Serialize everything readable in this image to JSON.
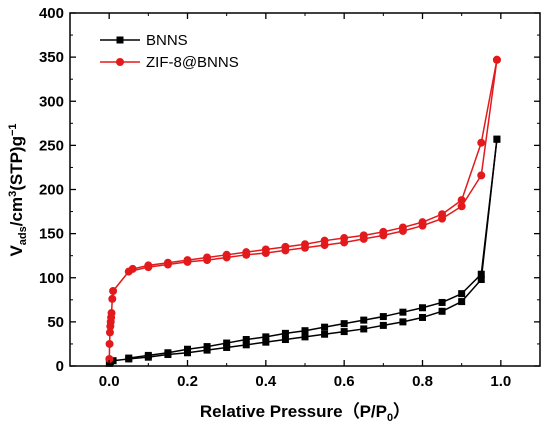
{
  "chart_data": {
    "type": "line",
    "title": "",
    "xlabel": "Relative Pressure (P/P₀)",
    "xlabel_parts": {
      "main": "Relative Pressure（P/P",
      "sub": "0",
      "end": "）"
    },
    "ylabel_parts": {
      "v": "V",
      "ads": "ads",
      "mid": "/cm",
      "cube": "3",
      "stp": "(STP)g",
      "neg": "−1"
    },
    "xlim": [
      -0.1,
      1.1
    ],
    "ylim": [
      0,
      400
    ],
    "xticks": [
      0.0,
      0.2,
      0.4,
      0.6,
      0.8,
      1.0
    ],
    "xtick_labels": [
      "0.0",
      "0.2",
      "0.4",
      "0.6",
      "0.8",
      "1.0"
    ],
    "yticks": [
      0,
      50,
      100,
      150,
      200,
      250,
      300,
      350,
      400
    ],
    "ytick_labels": [
      "0",
      "50",
      "100",
      "150",
      "200",
      "250",
      "300",
      "350",
      "400"
    ],
    "grid": false,
    "legend_position": "top-left",
    "series": [
      {
        "name": "BNNS",
        "color": "#000000",
        "marker": "square",
        "adsorption": {
          "x": [
            0.0005,
            0.001,
            0.003,
            0.01,
            0.05,
            0.1,
            0.15,
            0.2,
            0.25,
            0.3,
            0.35,
            0.4,
            0.45,
            0.5,
            0.55,
            0.6,
            0.65,
            0.7,
            0.75,
            0.8,
            0.85,
            0.9,
            0.95,
            0.99
          ],
          "y": [
            3,
            4,
            5,
            6,
            8,
            10,
            13,
            15,
            18,
            21,
            24,
            27,
            30,
            33,
            36,
            39,
            42,
            46,
            50,
            55,
            62,
            73,
            98,
            257
          ]
        },
        "desorption": {
          "x": [
            0.99,
            0.95,
            0.9,
            0.85,
            0.8,
            0.75,
            0.7,
            0.65,
            0.6,
            0.55,
            0.5,
            0.45,
            0.4,
            0.35,
            0.3,
            0.25,
            0.2,
            0.15,
            0.1,
            0.05
          ],
          "y": [
            257,
            104,
            82,
            72,
            66,
            61,
            56,
            52,
            48,
            44,
            40,
            37,
            33,
            30,
            26,
            22,
            19,
            15,
            12,
            9
          ]
        }
      },
      {
        "name": "ZIF-8@BNNS",
        "color": "#e31a1c",
        "marker": "circle",
        "adsorption": {
          "x": [
            0.0005,
            0.001,
            0.002,
            0.003,
            0.004,
            0.005,
            0.006,
            0.008,
            0.01,
            0.05,
            0.1,
            0.15,
            0.2,
            0.25,
            0.3,
            0.35,
            0.4,
            0.45,
            0.5,
            0.55,
            0.6,
            0.65,
            0.7,
            0.75,
            0.8,
            0.85,
            0.9,
            0.95,
            0.99
          ],
          "y": [
            8,
            25,
            38,
            45,
            50,
            55,
            60,
            76,
            85,
            107,
            112,
            115,
            118,
            120,
            123,
            126,
            128,
            131,
            134,
            137,
            140,
            144,
            148,
            153,
            159,
            167,
            181,
            216,
            347
          ]
        },
        "desorption": {
          "x": [
            0.99,
            0.95,
            0.9,
            0.85,
            0.8,
            0.75,
            0.7,
            0.65,
            0.6,
            0.55,
            0.5,
            0.45,
            0.4,
            0.35,
            0.3,
            0.25,
            0.2,
            0.15,
            0.1,
            0.06
          ],
          "y": [
            347,
            253,
            188,
            172,
            163,
            157,
            152,
            148,
            145,
            142,
            138,
            135,
            132,
            129,
            126,
            123,
            120,
            117,
            114,
            110
          ]
        }
      }
    ]
  }
}
